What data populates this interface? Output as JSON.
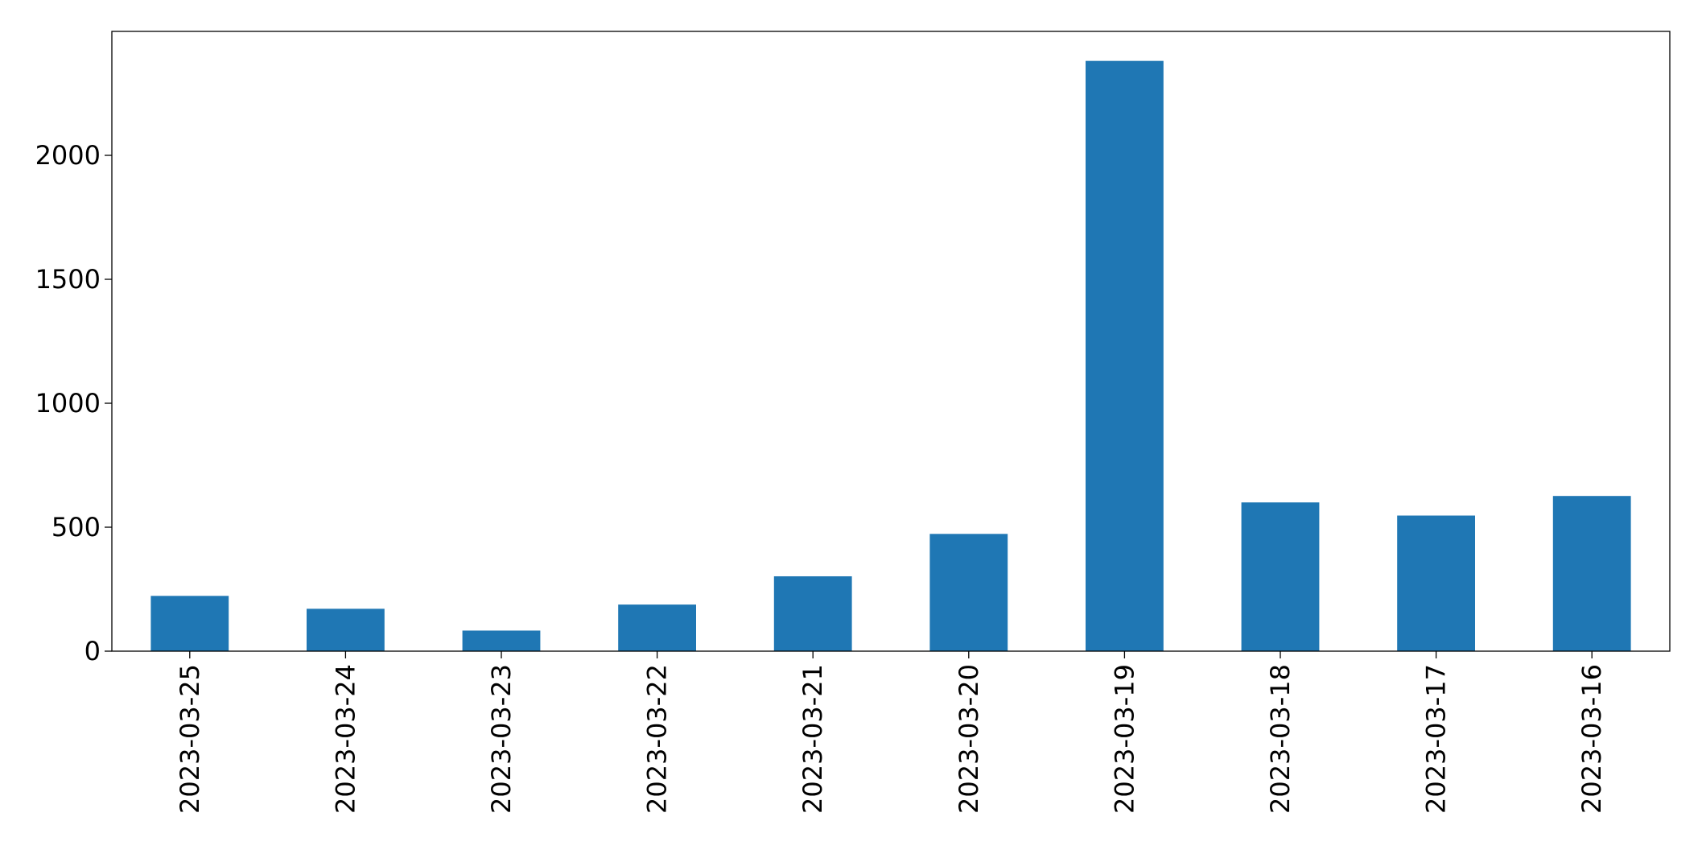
{
  "chart_data": {
    "type": "bar",
    "categories": [
      "2023-03-25",
      "2023-03-24",
      "2023-03-23",
      "2023-03-22",
      "2023-03-21",
      "2023-03-20",
      "2023-03-19",
      "2023-03-18",
      "2023-03-17",
      "2023-03-16"
    ],
    "values": [
      223,
      171,
      83,
      188,
      302,
      473,
      2381,
      600,
      547,
      626
    ],
    "color": "#1f77b4",
    "ylim": [
      0,
      2500
    ],
    "yticks": [
      0,
      500,
      1000,
      1500,
      2000
    ],
    "grid": false
  }
}
